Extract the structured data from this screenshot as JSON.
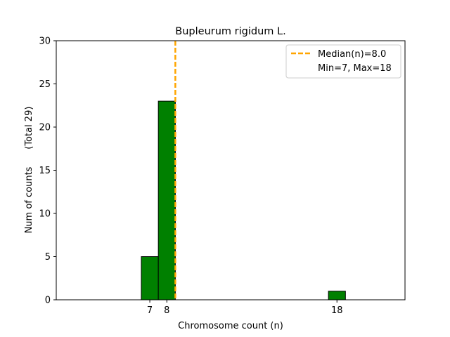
{
  "chart_data": {
    "type": "bar",
    "title": "Bupleurum rigidum L.",
    "xlabel": "Chromosome count (n)",
    "ylabel": "Num of counts      (Total 29)",
    "xlim": [
      1.0,
      21.5
    ],
    "ylim": [
      0,
      30
    ],
    "xticks": [
      7,
      8,
      18
    ],
    "yticks": [
      0,
      5,
      10,
      15,
      20,
      25,
      30
    ],
    "bar_width": 1,
    "bar_color": "#008000",
    "bar_edge_color": "#000000",
    "bars": [
      {
        "x": 7,
        "value": 5
      },
      {
        "x": 8,
        "value": 23
      },
      {
        "x": 18,
        "value": 1
      }
    ],
    "median": {
      "value": 8.0,
      "color": "#FFA500",
      "style": "dashed"
    },
    "legend": {
      "placement": "top-right",
      "entries": [
        "Median(n)=8.0",
        "Min=7, Max=18"
      ]
    },
    "grid": false
  }
}
